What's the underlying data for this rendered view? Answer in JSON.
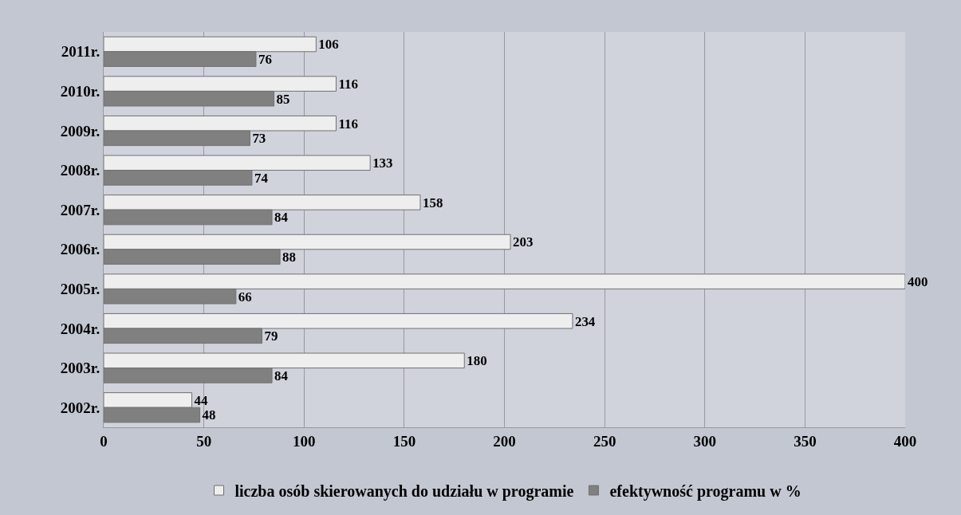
{
  "chart_data": {
    "type": "bar",
    "orientation": "horizontal",
    "categories": [
      "2011r.",
      "2010r.",
      "2009r.",
      "2008r.",
      "2007r.",
      "2006r.",
      "2005r.",
      "2004r.",
      "2003r.",
      "2002r."
    ],
    "series": [
      {
        "name": "liczba osób skierowanych do udziału w programie",
        "color": "#eeeeee",
        "values": [
          106,
          116,
          116,
          133,
          158,
          203,
          400,
          234,
          180,
          44
        ]
      },
      {
        "name": "efektywność programu w %",
        "color": "#808080",
        "values": [
          76,
          85,
          73,
          74,
          84,
          88,
          66,
          79,
          84,
          48
        ]
      }
    ],
    "xlim": [
      0,
      400
    ],
    "xticks": [
      0,
      50,
      100,
      150,
      200,
      250,
      300,
      350,
      400
    ],
    "grid": "x",
    "legend": "bottom",
    "data_labels": true
  }
}
